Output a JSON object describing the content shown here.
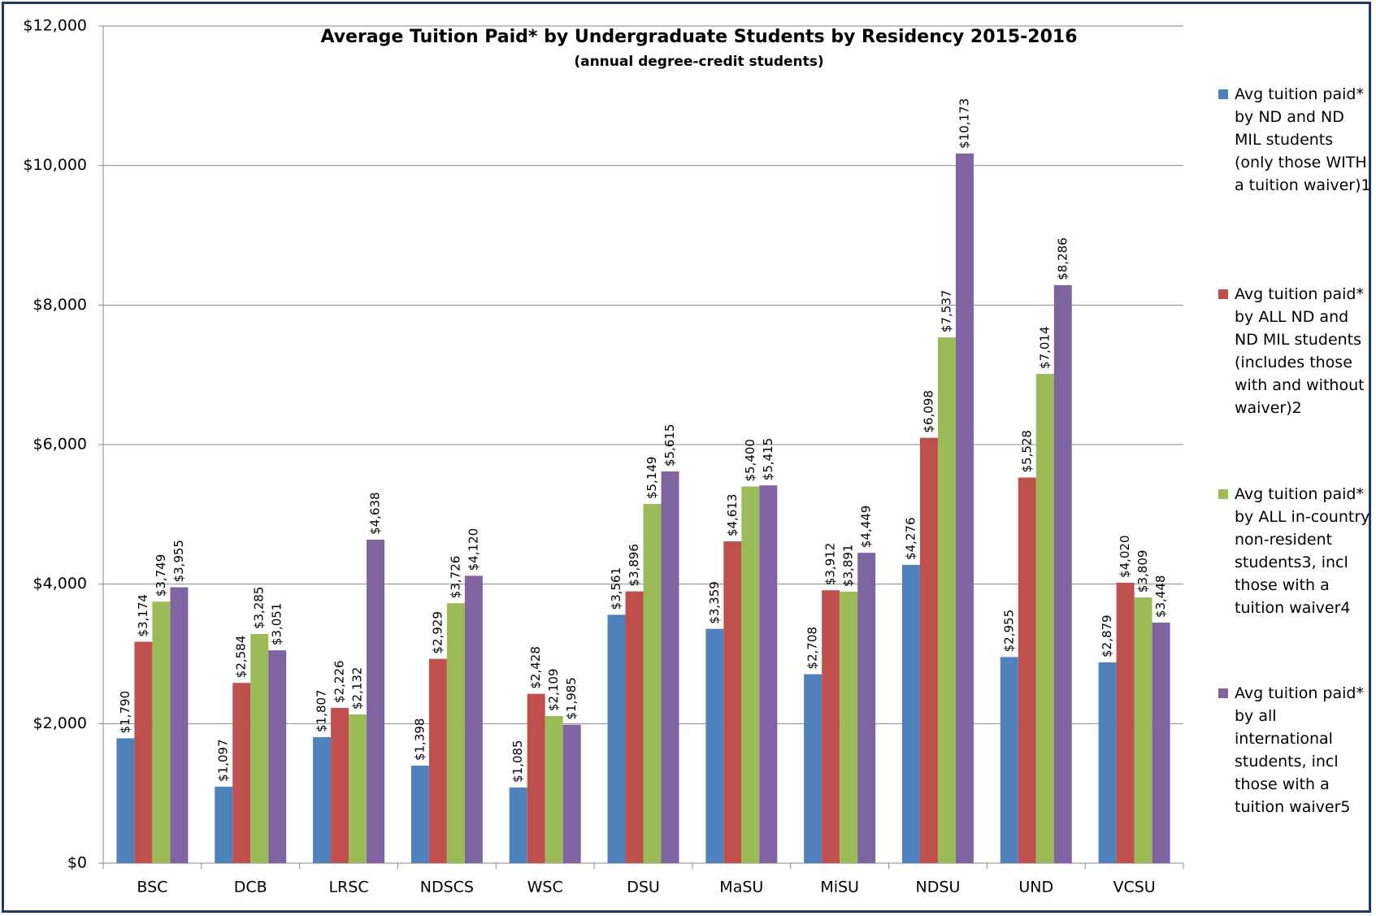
{
  "chart_data": {
    "type": "bar",
    "title": "Average Tuition Paid* by  Undergraduate Students by Residency 2015-2016",
    "subtitle": "(annual degree-credit students)",
    "categories": [
      "BSC",
      "DCB",
      "LRSC",
      "NDSCS",
      "WSC",
      "DSU",
      "MaSU",
      "MiSU",
      "NDSU",
      "UND",
      "VCSU"
    ],
    "series": [
      {
        "name": "Avg tuition paid* by ND and ND MIL students (only those WITH a tuition waiver)1",
        "color": "#4f81bd",
        "values": [
          1790,
          1097,
          1807,
          1398,
          1085,
          3561,
          3359,
          2708,
          4276,
          2955,
          2879
        ],
        "value_labels": [
          "$1,790",
          "$1,097",
          "$1,807",
          "$1,398",
          "$1,085",
          "$3,561",
          "$3,359",
          "$2,708",
          "$4,276",
          "$2,955",
          "$2,879"
        ]
      },
      {
        "name": "Avg tuition paid* by ALL ND and ND MIL students (includes those with and without waiver)2",
        "color": "#c0504d",
        "values": [
          3174,
          2584,
          2226,
          2929,
          2428,
          3896,
          4613,
          3912,
          6098,
          5528,
          4020
        ],
        "value_labels": [
          "$3,174",
          "$2,584",
          "$2,226",
          "$2,929",
          "$2,428",
          "$3,896",
          "$4,613",
          "$3,912",
          "$6,098",
          "$5,528",
          "$4,020"
        ]
      },
      {
        "name": "Avg tuition paid* by ALL in-country non-resident students3, incl those with a tuition waiver4",
        "color": "#9bbb59",
        "values": [
          3749,
          3285,
          2132,
          3726,
          2109,
          5149,
          5400,
          3891,
          7537,
          7014,
          3809
        ],
        "value_labels": [
          "$3,749",
          "$3,285",
          "$2,132",
          "$3,726",
          "$2,109",
          "$5,149",
          "$5,400",
          "$3,891",
          "$7,537",
          "$7,014",
          "$3,809"
        ]
      },
      {
        "name": "Avg tuition paid* by all international students, incl those with a tuition waiver5",
        "color": "#8064a2",
        "values": [
          3955,
          3051,
          4638,
          4120,
          1985,
          5615,
          5415,
          4449,
          10173,
          8286,
          3448
        ],
        "value_labels": [
          "$3,955",
          "$3,051",
          "$4,638",
          "$4,120",
          "$1,985",
          "$5,615",
          "$5,415",
          "$4,449",
          "$10,173",
          "$8,286",
          "$3,448"
        ]
      }
    ],
    "ylim": [
      0,
      12000
    ],
    "yticks": [
      {
        "value": 0,
        "label": "$0"
      },
      {
        "value": 2000,
        "label": "$2,000"
      },
      {
        "value": 4000,
        "label": "$4,000"
      },
      {
        "value": 6000,
        "label": "$6,000"
      },
      {
        "value": 8000,
        "label": "$8,000"
      },
      {
        "value": 10000,
        "label": "$10,000"
      },
      {
        "value": 12000,
        "label": "$12,000"
      }
    ],
    "grid": true,
    "legend": "right"
  }
}
